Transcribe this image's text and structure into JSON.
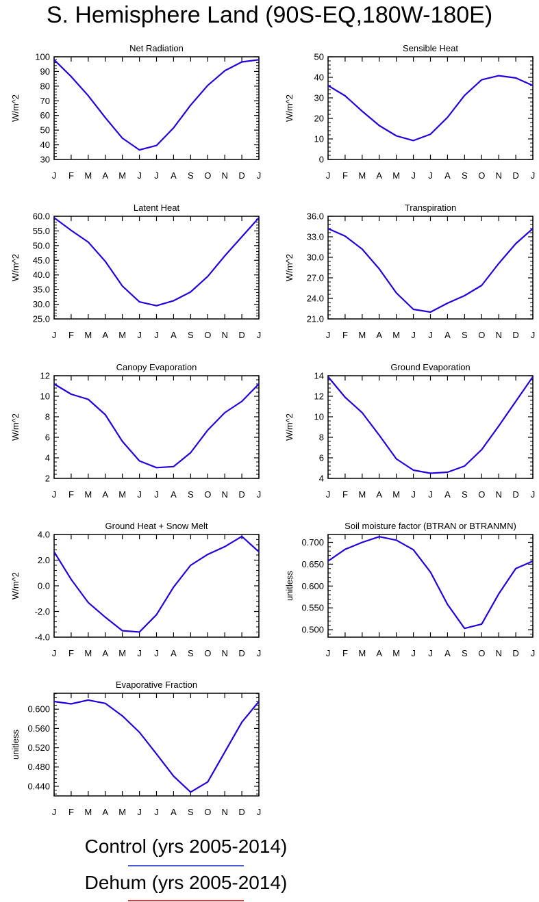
{
  "title": "S. Hemisphere Land (90S-EQ,180W-180E)",
  "months": [
    "J",
    "F",
    "M",
    "A",
    "M",
    "J",
    "J",
    "A",
    "S",
    "O",
    "N",
    "D",
    "J"
  ],
  "line_color": "#2200dd",
  "legend": [
    {
      "label": "Control (yrs 2005-2014)",
      "color": "#4b5bd6"
    },
    {
      "label": "Dehum (yrs 2005-2014)",
      "color": "#ee3333"
    }
  ],
  "chart_data": [
    {
      "type": "line",
      "title": "Net Radiation",
      "ylabel": "W/m^2",
      "yticks": [
        "30",
        "40",
        "50",
        "60",
        "70",
        "80",
        "90",
        "100"
      ],
      "ylim": [
        30,
        100
      ],
      "values": [
        98,
        86.5,
        73.5,
        58.5,
        44.5,
        36.5,
        39.5,
        51.5,
        67,
        80.5,
        90.5,
        96.5,
        98
      ]
    },
    {
      "type": "line",
      "title": "Sensible Heat",
      "ylabel": "W/m^2",
      "yticks": [
        "0",
        "10",
        "20",
        "30",
        "40",
        "50"
      ],
      "ylim": [
        0,
        50
      ],
      "values": [
        36,
        31,
        23.5,
        16.5,
        11.5,
        9.2,
        12.3,
        20.5,
        31.2,
        38.8,
        40.8,
        39.7,
        36
      ]
    },
    {
      "type": "line",
      "title": "Latent Heat",
      "ylabel": "W/m^2",
      "yticks": [
        "25.0",
        "30.0",
        "35.0",
        "40.0",
        "45.0",
        "50.0",
        "55.0",
        "60.0"
      ],
      "ylim": [
        25,
        60
      ],
      "values": [
        59.5,
        55.2,
        51.2,
        44.6,
        36.2,
        30.8,
        29.5,
        31.2,
        34.2,
        39.5,
        46.5,
        53,
        59.5
      ]
    },
    {
      "type": "line",
      "title": "Transpiration",
      "ylabel": "W/m^2",
      "yticks": [
        "21.0",
        "24.0",
        "27.0",
        "30.0",
        "33.0",
        "36.0"
      ],
      "ylim": [
        21,
        36
      ],
      "values": [
        34.2,
        33.1,
        31.2,
        28.3,
        24.8,
        22.4,
        22,
        23.3,
        24.4,
        25.9,
        29.1,
        32,
        34.2
      ]
    },
    {
      "type": "line",
      "title": "Canopy Evaporation",
      "ylabel": "W/m^2",
      "yticks": [
        "2",
        "4",
        "6",
        "8",
        "10",
        "12"
      ],
      "ylim": [
        2,
        12
      ],
      "values": [
        11.2,
        10.2,
        9.7,
        8.2,
        5.6,
        3.7,
        3.05,
        3.15,
        4.5,
        6.7,
        8.4,
        9.5,
        11.2
      ]
    },
    {
      "type": "line",
      "title": "Ground Evaporation",
      "ylabel": "W/m^2",
      "yticks": [
        "4",
        "6",
        "8",
        "10",
        "12",
        "14"
      ],
      "ylim": [
        4,
        14
      ],
      "values": [
        13.9,
        11.9,
        10.4,
        8.2,
        5.9,
        4.8,
        4.5,
        4.6,
        5.2,
        6.8,
        9.1,
        11.5,
        13.9
      ]
    },
    {
      "type": "line",
      "title": "Ground Heat + Snow Melt",
      "ylabel": "W/m^2",
      "yticks": [
        "-4.0",
        "-2.0",
        "0.0",
        "2.0",
        "4.0"
      ],
      "ylim": [
        -4,
        4
      ],
      "values": [
        2.65,
        0.5,
        -1.3,
        -2.45,
        -3.5,
        -3.6,
        -2.25,
        -0.1,
        1.6,
        2.45,
        3.05,
        3.85,
        2.65
      ]
    },
    {
      "type": "line",
      "title": "Soil moisture factor (BTRAN or BTRANMN)",
      "ylabel": "unitless",
      "yticks": [
        "0.500",
        "0.550",
        "0.600",
        "0.650",
        "0.700"
      ],
      "ylim": [
        0.483,
        0.718
      ],
      "values": [
        0.657,
        0.684,
        0.7,
        0.713,
        0.705,
        0.683,
        0.632,
        0.558,
        0.503,
        0.513,
        0.582,
        0.64,
        0.657
      ]
    },
    {
      "type": "line",
      "title": "Evaporative Fraction",
      "ylabel": "unitless",
      "yticks": [
        "0.440",
        "0.480",
        "0.520",
        "0.560",
        "0.600"
      ],
      "ylim": [
        0.42,
        0.633
      ],
      "values": [
        0.616,
        0.611,
        0.619,
        0.612,
        0.586,
        0.552,
        0.507,
        0.461,
        0.428,
        0.449,
        0.511,
        0.573,
        0.616
      ]
    }
  ]
}
